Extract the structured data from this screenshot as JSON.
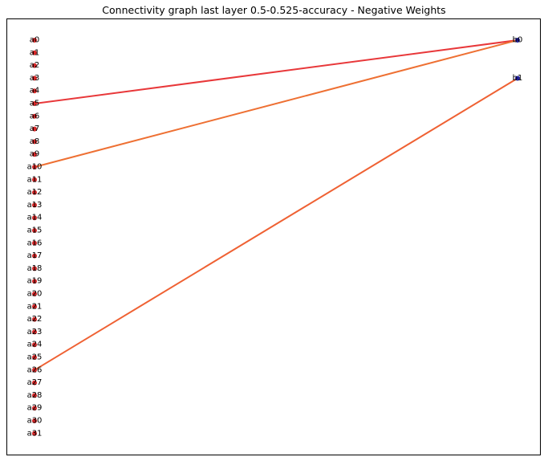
{
  "title": "Connectivity graph last layer 0.5-0.525-accuracy - Negative Weights",
  "chart_data": {
    "type": "graph",
    "title": "Connectivity graph last layer 0.5-0.525-accuracy - Negative Weights",
    "left_nodes": [
      "a0",
      "a1",
      "a2",
      "a3",
      "a4",
      "a5",
      "a6",
      "a7",
      "a8",
      "a9",
      "a10",
      "a11",
      "a12",
      "a13",
      "a14",
      "a15",
      "a16",
      "a17",
      "a18",
      "a19",
      "a20",
      "a21",
      "a22",
      "a23",
      "a24",
      "a25",
      "a26",
      "a27",
      "a28",
      "a29",
      "a30",
      "a31"
    ],
    "right_nodes": [
      "b0",
      "b1"
    ],
    "left_node_color": "#d62728",
    "right_node_color": "#1f1f9f",
    "edges": [
      {
        "source": "a5",
        "target": "b0",
        "color": "#e8383a"
      },
      {
        "source": "a10",
        "target": "b0",
        "color": "#ee7033"
      },
      {
        "source": "a26",
        "target": "b1",
        "color": "#ef6133"
      }
    ]
  }
}
